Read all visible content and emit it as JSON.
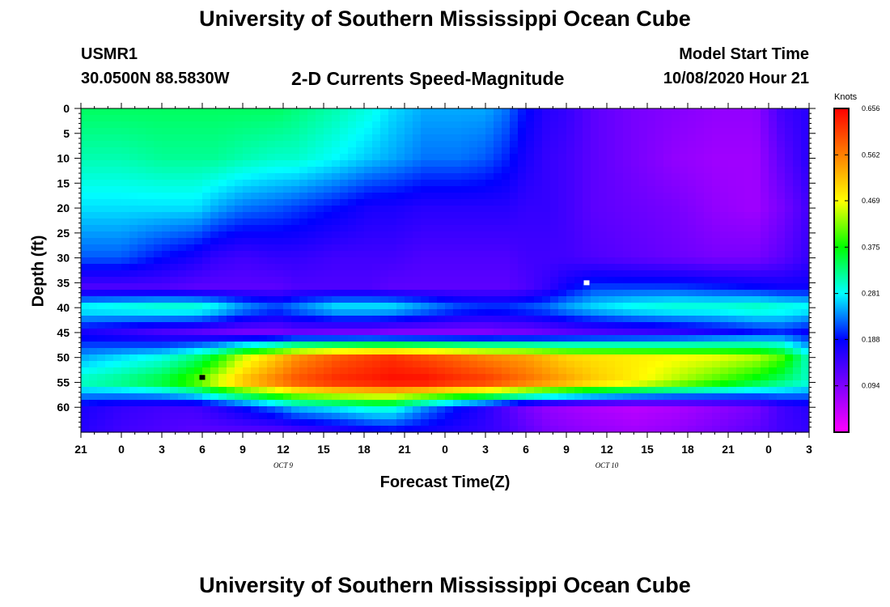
{
  "header": {
    "title": "University of Southern Mississippi Ocean Cube",
    "station": "USMR1",
    "coords": "30.0500N 88.5830W",
    "subtitle": "2-D Currents Speed-Magnitude",
    "start_label": "Model Start Time",
    "start_value": "10/08/2020 Hour 21"
  },
  "footer": {
    "title": "University of Southern Mississippi Ocean Cube"
  },
  "chart_data": {
    "type": "heatmap",
    "title": "2-D Currents Speed-Magnitude",
    "xlabel": "Forecast Time(Z)",
    "ylabel": "Depth (ft)",
    "x_unit": "forecast hours since model start (10/08/2020 Hour 21)",
    "xlim": [
      0,
      54
    ],
    "ylim": [
      0,
      65
    ],
    "y_inverted": true,
    "x_ticks": [
      {
        "hour": 0,
        "label": "21"
      },
      {
        "hour": 3,
        "label": "0"
      },
      {
        "hour": 6,
        "label": "3"
      },
      {
        "hour": 9,
        "label": "6"
      },
      {
        "hour": 12,
        "label": "9"
      },
      {
        "hour": 15,
        "label": "12"
      },
      {
        "hour": 18,
        "label": "15"
      },
      {
        "hour": 21,
        "label": "18"
      },
      {
        "hour": 24,
        "label": "21"
      },
      {
        "hour": 27,
        "label": "0"
      },
      {
        "hour": 30,
        "label": "3"
      },
      {
        "hour": 33,
        "label": "6"
      },
      {
        "hour": 36,
        "label": "9"
      },
      {
        "hour": 39,
        "label": "12"
      },
      {
        "hour": 42,
        "label": "15"
      },
      {
        "hour": 45,
        "label": "18"
      },
      {
        "hour": 48,
        "label": "21"
      },
      {
        "hour": 51,
        "label": "0"
      },
      {
        "hour": 54,
        "label": "3"
      }
    ],
    "day_labels": [
      {
        "hour": 15,
        "label": "OCT 9"
      },
      {
        "hour": 39,
        "label": "OCT 10"
      }
    ],
    "y_ticks": [
      0,
      5,
      10,
      15,
      20,
      25,
      30,
      35,
      40,
      45,
      50,
      55,
      60
    ],
    "colorbar": {
      "unit": "Knots",
      "min": 0.0,
      "max": 0.656,
      "tick_values": [
        0.094,
        0.188,
        0.281,
        0.375,
        0.469,
        0.562,
        0.656
      ],
      "tick_labels": [
        "0.094",
        "0.188",
        "0.281",
        "0.375",
        "0.469",
        "0.562",
        "0.656"
      ],
      "colors": [
        "#ff00ff",
        "#7f00ff",
        "#0000ff",
        "#00ffff",
        "#00ff00",
        "#ffff00",
        "#ff7f00",
        "#ff0000"
      ]
    },
    "markers": [
      {
        "name": "min-marker",
        "hour": 9,
        "depth": 54,
        "color": "#000000"
      },
      {
        "name": "max-marker",
        "hour": 37.5,
        "depth": 35,
        "color": "#ffffff"
      }
    ],
    "field": {
      "description": "Approximate speed (knots) read from color; columns = forecast hour, rows = depth (ft)",
      "hours": [
        0,
        3,
        6,
        8.5,
        10,
        12,
        14.5,
        16,
        19,
        21.5,
        23,
        25.5,
        28,
        30,
        31.5,
        33,
        34.5,
        36,
        38,
        41,
        44,
        47,
        50,
        52,
        54
      ],
      "depths": [
        0,
        10,
        20,
        30,
        36,
        40,
        45,
        50,
        55,
        60,
        65
      ],
      "values": [
        [
          0.34,
          0.34,
          0.34,
          0.34,
          0.34,
          0.34,
          0.34,
          0.33,
          0.31,
          0.29,
          0.27,
          0.25,
          0.25,
          0.25,
          0.23,
          0.19,
          0.16,
          0.15,
          0.12,
          0.1,
          0.09,
          0.08,
          0.08,
          0.14,
          0.16
        ],
        [
          0.31,
          0.31,
          0.32,
          0.32,
          0.32,
          0.31,
          0.3,
          0.3,
          0.28,
          0.26,
          0.25,
          0.23,
          0.23,
          0.22,
          0.2,
          0.17,
          0.15,
          0.14,
          0.12,
          0.1,
          0.08,
          0.07,
          0.07,
          0.12,
          0.16
        ],
        [
          0.27,
          0.27,
          0.27,
          0.27,
          0.25,
          0.23,
          0.22,
          0.21,
          0.19,
          0.17,
          0.17,
          0.16,
          0.16,
          0.16,
          0.16,
          0.15,
          0.15,
          0.14,
          0.12,
          0.11,
          0.1,
          0.08,
          0.07,
          0.1,
          0.14
        ],
        [
          0.22,
          0.22,
          0.19,
          0.17,
          0.15,
          0.14,
          0.15,
          0.15,
          0.14,
          0.14,
          0.14,
          0.13,
          0.13,
          0.13,
          0.13,
          0.14,
          0.14,
          0.14,
          0.13,
          0.12,
          0.11,
          0.1,
          0.1,
          0.12,
          0.15
        ],
        [
          0.13,
          0.13,
          0.13,
          0.12,
          0.12,
          0.12,
          0.12,
          0.13,
          0.13,
          0.13,
          0.12,
          0.12,
          0.12,
          0.12,
          0.12,
          0.13,
          0.15,
          0.18,
          0.21,
          0.21,
          0.21,
          0.2,
          0.19,
          0.18,
          0.18
        ],
        [
          0.29,
          0.3,
          0.31,
          0.31,
          0.29,
          0.25,
          0.22,
          0.24,
          0.28,
          0.28,
          0.28,
          0.25,
          0.22,
          0.21,
          0.21,
          0.22,
          0.23,
          0.25,
          0.27,
          0.29,
          0.3,
          0.3,
          0.31,
          0.3,
          0.29
        ],
        [
          0.17,
          0.15,
          0.13,
          0.12,
          0.11,
          0.1,
          0.1,
          0.11,
          0.1,
          0.1,
          0.09,
          0.09,
          0.09,
          0.09,
          0.1,
          0.1,
          0.11,
          0.12,
          0.13,
          0.14,
          0.15,
          0.17,
          0.19,
          0.2,
          0.18
        ],
        [
          0.25,
          0.27,
          0.29,
          0.33,
          0.37,
          0.45,
          0.51,
          0.55,
          0.59,
          0.61,
          0.62,
          0.6,
          0.58,
          0.56,
          0.55,
          0.54,
          0.52,
          0.5,
          0.49,
          0.48,
          0.47,
          0.46,
          0.44,
          0.4,
          0.3
        ],
        [
          0.31,
          0.33,
          0.36,
          0.41,
          0.46,
          0.52,
          0.57,
          0.6,
          0.63,
          0.64,
          0.65,
          0.65,
          0.63,
          0.62,
          0.6,
          0.58,
          0.56,
          0.54,
          0.51,
          0.48,
          0.44,
          0.4,
          0.36,
          0.33,
          0.3
        ],
        [
          0.17,
          0.15,
          0.14,
          0.14,
          0.16,
          0.19,
          0.23,
          0.26,
          0.28,
          0.3,
          0.3,
          0.24,
          0.19,
          0.16,
          0.13,
          0.1,
          0.08,
          0.07,
          0.06,
          0.05,
          0.06,
          0.08,
          0.1,
          0.14,
          0.16
        ],
        [
          0.16,
          0.14,
          0.13,
          0.12,
          0.12,
          0.12,
          0.12,
          0.13,
          0.15,
          0.17,
          0.18,
          0.17,
          0.16,
          0.15,
          0.14,
          0.12,
          0.1,
          0.09,
          0.08,
          0.07,
          0.08,
          0.1,
          0.12,
          0.14,
          0.15
        ]
      ]
    }
  }
}
